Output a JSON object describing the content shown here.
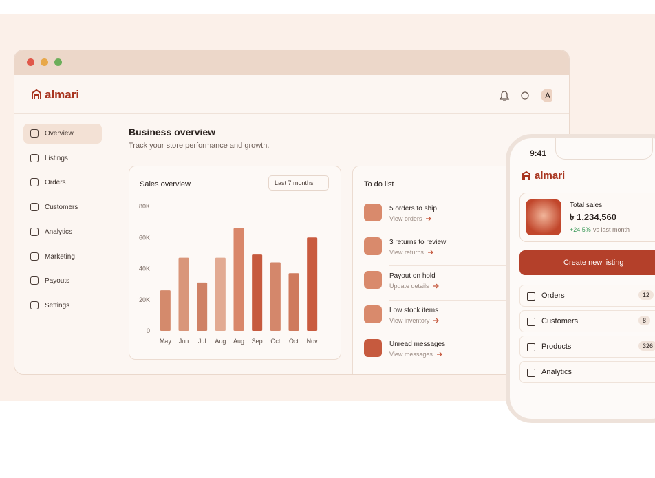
{
  "browser": {
    "logo": "almari",
    "avatar": "A"
  },
  "sidebar": [
    "Overview",
    "Listings",
    "Orders",
    "Customers",
    "Analytics",
    "Marketing",
    "Payouts",
    "Settings"
  ],
  "main": {
    "title": "Business overview",
    "subtitle": "Track your store performance and growth."
  },
  "sales_card": {
    "title": "Sales overview",
    "filter": "Last 7 months"
  },
  "chart_data": {
    "type": "bar",
    "categories": [
      "May",
      "Jun",
      "Jul",
      "Aug",
      "Aug",
      "Sep",
      "Oct",
      "Oct",
      "Nov"
    ],
    "values": [
      26000,
      47000,
      31000,
      47000,
      66000,
      49000,
      44000,
      37000,
      60000
    ],
    "colors": [
      "#d48a6c",
      "#d9967a",
      "#cf8165",
      "#e2aa92",
      "#d9876a",
      "#c65a3e",
      "#d4876b",
      "#cf7a5d",
      "#c95b3f"
    ],
    "ylim": [
      0,
      80000
    ],
    "yticks": [
      {
        "value": 0,
        "label": "0"
      },
      {
        "value": 20000,
        "label": "20K"
      },
      {
        "value": 40000,
        "label": "40K"
      },
      {
        "value": 60000,
        "label": "60K"
      },
      {
        "value": 80000,
        "label": "80K"
      }
    ],
    "grid": false
  },
  "todo": {
    "title": "To do list",
    "items": [
      {
        "title": "5 orders to ship",
        "link": "View orders"
      },
      {
        "title": "3 returns to review",
        "link": "View returns"
      },
      {
        "title": "Payout on hold",
        "link": "Update details"
      },
      {
        "title": "Low stock items",
        "link": "View inventory"
      },
      {
        "title": "Unread messages",
        "link": "View messages"
      }
    ]
  },
  "phone": {
    "time": "9:41",
    "logo": "almari",
    "total_sales": {
      "label": "Total sales",
      "value": "৳ 1,234,560",
      "change": "+24.5%",
      "note": "vs last month"
    },
    "button": "Create new listing",
    "menu": [
      {
        "label": "Orders",
        "count": 12
      },
      {
        "label": "Customers",
        "count": 8
      },
      {
        "label": "Products",
        "count": 326
      },
      {
        "label": "Analytics"
      }
    ]
  }
}
